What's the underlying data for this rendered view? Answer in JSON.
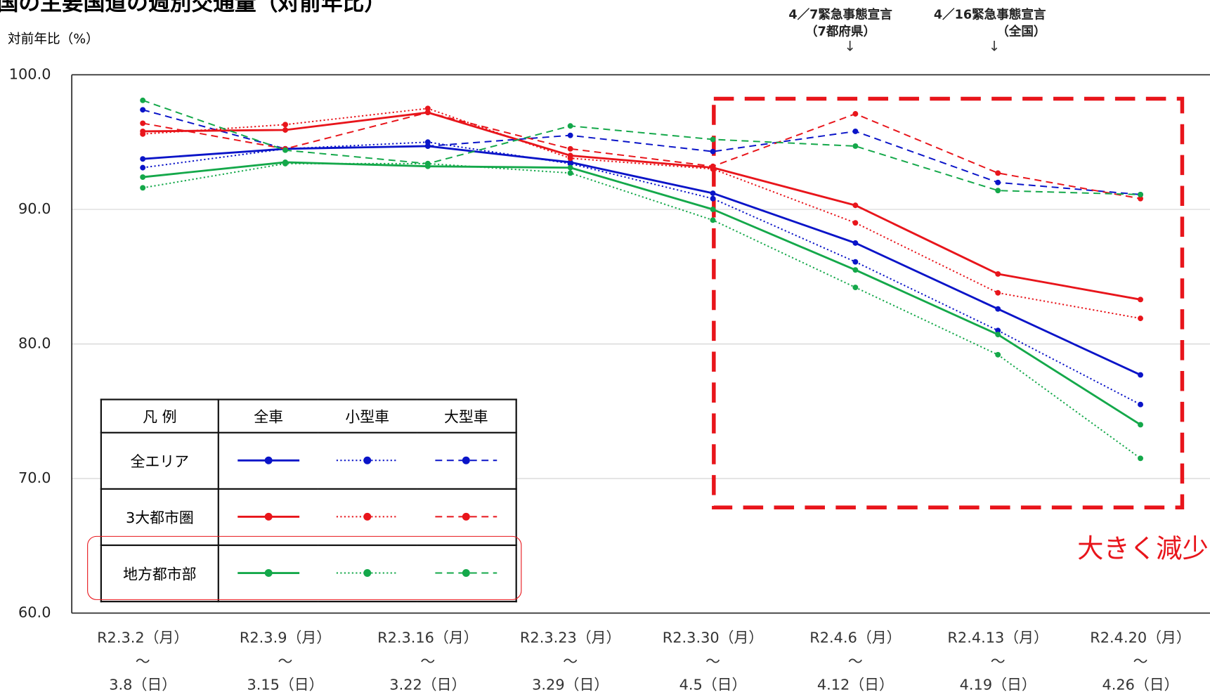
{
  "chart_data": {
    "type": "line",
    "title": "国の主要国道の週別交通量（対前年比）",
    "ylabel": "対前年比（%）",
    "categories": [
      "R2.3.2（月）\n～\n3.8（日）",
      "R2.3.9（月）\n～\n3.15（日）",
      "R2.3.16（月）\n～\n3.22（日）",
      "R2.3.23（月）\n～\n3.29（日）",
      "R2.3.30（月）\n～\n4.5（日）",
      "R2.4.6（月）\n～\n4.12（日）",
      "R2.4.13（月）\n～\n4.19（日）",
      "R2.4.20（月）\n～\n4.26（日）"
    ],
    "ylim": [
      60,
      100
    ],
    "yticks": [
      {
        "value": 60,
        "label": "60.0"
      },
      {
        "value": 70,
        "label": "70.0"
      },
      {
        "value": 80,
        "label": "80.0"
      },
      {
        "value": 90,
        "label": "90.0"
      },
      {
        "value": 100,
        "label": "100.0"
      }
    ],
    "grid": true,
    "legend_header": "凡 例",
    "kinds": [
      {
        "name": "全車",
        "dash": "solid"
      },
      {
        "name": "小型車",
        "dash": "dotted"
      },
      {
        "name": "大型車",
        "dash": "dashed"
      }
    ],
    "groups": [
      {
        "name": "全エリア",
        "color": "#0a14c8",
        "series": [
          {
            "values": [
              93.75,
              94.5,
              94.7,
              93.5,
              91.2,
              87.5,
              82.6,
              77.7
            ]
          },
          {
            "values": [
              93.1,
              94.5,
              95.0,
              93.4,
              90.8,
              86.1,
              81.0,
              75.5
            ]
          },
          {
            "values": [
              97.4,
              94.5,
              94.7,
              95.5,
              94.3,
              95.8,
              92.0,
              91.1
            ]
          }
        ]
      },
      {
        "name": "3大都市圏",
        "color": "#e8151b",
        "series": [
          {
            "values": [
              95.8,
              95.9,
              97.2,
              94.0,
              93.1,
              90.3,
              85.2,
              83.3
            ]
          },
          {
            "values": [
              95.6,
              96.3,
              97.5,
              93.8,
              93.0,
              89.0,
              83.8,
              81.9
            ]
          },
          {
            "values": [
              96.4,
              94.5,
              97.2,
              94.5,
              93.2,
              97.1,
              92.7,
              90.8
            ]
          }
        ]
      },
      {
        "name": "地方都市部",
        "color": "#14a84a",
        "series": [
          {
            "values": [
              92.4,
              93.5,
              93.2,
              93.1,
              90.0,
              85.5,
              80.7,
              74.0
            ]
          },
          {
            "values": [
              91.6,
              93.4,
              93.4,
              92.7,
              89.2,
              84.2,
              79.2,
              71.5
            ]
          },
          {
            "values": [
              98.1,
              94.4,
              93.4,
              96.2,
              95.2,
              94.7,
              91.4,
              91.1
            ]
          }
        ]
      }
    ],
    "annotations": [
      {
        "text": "4／7緊急事態宣言\n（7都府県）",
        "arrow": "↓"
      },
      {
        "text": "4／16緊急事態宣言\n（全国）",
        "arrow": "↓"
      }
    ],
    "callout": "大きく減少"
  }
}
